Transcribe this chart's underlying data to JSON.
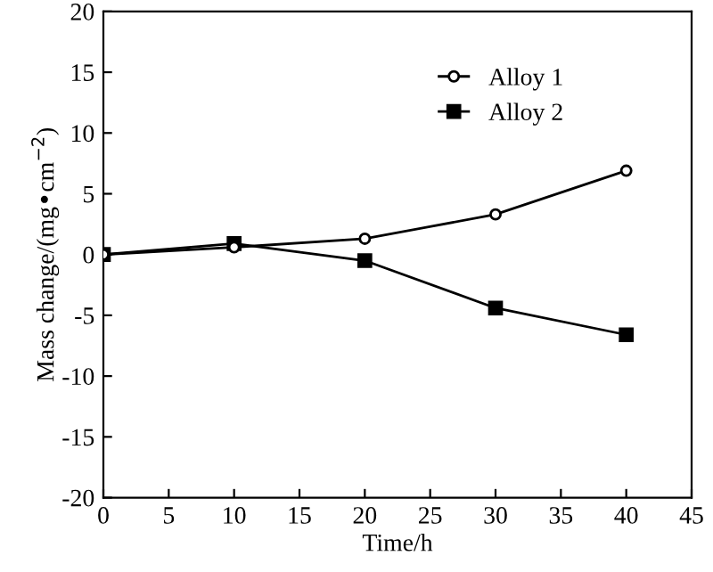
{
  "chart_data": {
    "type": "line",
    "xlabel": "Time/h",
    "ylabel": "Mass change/(mg•cm$^{−2}$)",
    "x": [
      0,
      10,
      20,
      30,
      40
    ],
    "series": [
      {
        "name": "Alloy 1",
        "color": "#000000",
        "marker": "circle",
        "values": [
          0,
          0.6,
          1.3,
          3.3,
          6.9
        ]
      },
      {
        "name": "Alloy 2",
        "color": "#000000",
        "marker": "square",
        "values": [
          0,
          0.9,
          -0.5,
          -4.4,
          -6.6
        ]
      }
    ],
    "xlim": [
      0,
      45
    ],
    "xticks": [
      0,
      5,
      10,
      15,
      20,
      25,
      30,
      35,
      40,
      45
    ],
    "ylim": [
      -20,
      20
    ],
    "yticks": [
      -20,
      -15,
      -10,
      -5,
      0,
      5,
      10,
      15,
      20
    ],
    "legend": "top right",
    "grid": false,
    "line_style": "solid"
  }
}
